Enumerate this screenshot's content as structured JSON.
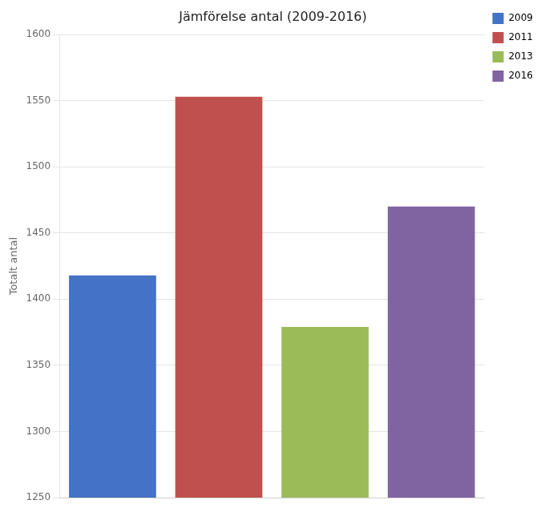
{
  "chart_data": {
    "type": "bar",
    "title": "Jämförelse antal (2009-2016)",
    "categories": [
      "2009",
      "2011",
      "2013",
      "2016"
    ],
    "values": [
      1418,
      1553,
      1379,
      1470
    ],
    "colors": [
      "#4472C4",
      "#C0504D",
      "#9BBB59",
      "#8064A2"
    ],
    "ylabel": "Totalt antal",
    "ylim": [
      1250,
      1600
    ],
    "yticks": [
      1250,
      1300,
      1350,
      1400,
      1450,
      1500,
      1550,
      1600
    ],
    "grid": true,
    "legend": "right",
    "tick_labels": "y"
  }
}
